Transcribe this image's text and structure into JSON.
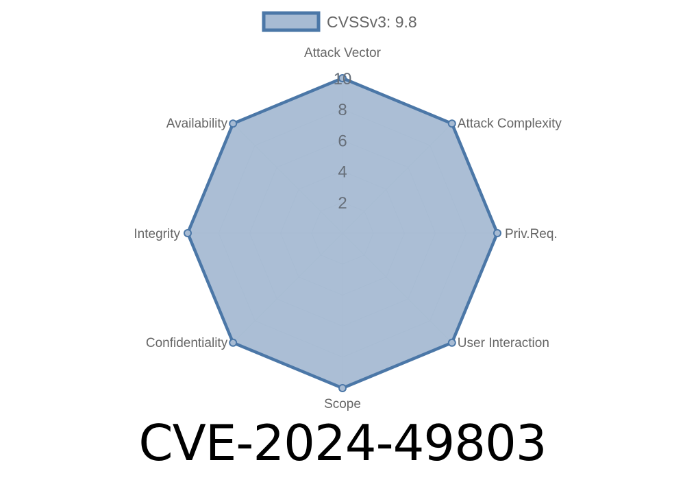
{
  "chart_data": {
    "type": "radar",
    "axes": [
      "Attack Vector",
      "Attack Complexity",
      "Priv.Req.",
      "User Interaction",
      "Scope",
      "Confidentiality",
      "Integrity",
      "Availability"
    ],
    "series": [
      {
        "name": "CVSSv3: 9.8",
        "values": [
          10,
          10,
          10,
          10,
          10,
          10,
          10,
          10
        ]
      }
    ],
    "rlim": [
      0,
      10
    ],
    "ticks": [
      "2",
      "4",
      "6",
      "8",
      "10"
    ],
    "tick_values": [
      2,
      4,
      6,
      8,
      10
    ],
    "legend": "top",
    "grid": true,
    "colors": {
      "fill": "#a7bbd3",
      "stroke": "#4b77a7",
      "grid": "#c8cdd4",
      "label": "#666666"
    }
  },
  "title": "CVE-2024-49803"
}
